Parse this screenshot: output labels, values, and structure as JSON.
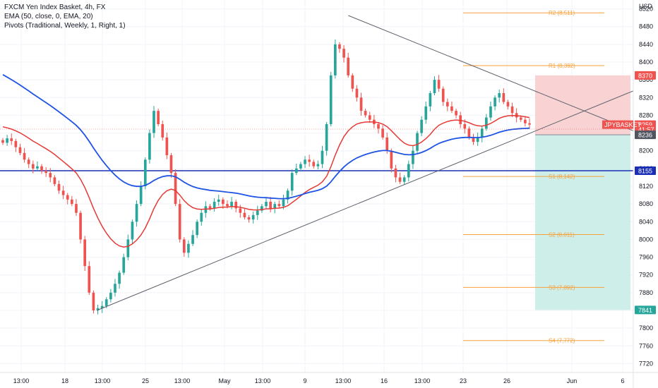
{
  "legend": {
    "title": "FXCM Yen Index Basket, 4h, FX",
    "ema": "EMA (50, close, 0, EMA, 20)",
    "pivots": "Pivots (Traditional, Weekly, 1, Right, 1)"
  },
  "colors": {
    "up": "#26a69a",
    "down": "#ef5350",
    "ema50": "#e53935",
    "ema_blue": "#1e53e5",
    "hline": "#1a2fb5",
    "pivot": "#f7a13b",
    "risk": "#f8c8c8",
    "reward": "#c6ebe6"
  },
  "chart_data": {
    "type": "candlestick",
    "currency": "USD",
    "ylim": [
      7700,
      8540
    ],
    "yticks": [
      8520,
      8480,
      8440,
      8400,
      8360,
      8320,
      8280,
      8240,
      8200,
      8160,
      8120,
      8080,
      8040,
      8000,
      7960,
      7920,
      7880,
      7840,
      7800,
      7760,
      7720
    ],
    "xticks": [
      "13:00",
      "18",
      "13:00",
      "25",
      "13:00",
      "May",
      "13:00",
      "9",
      "13:00",
      "16",
      "13:00",
      "23",
      "26",
      "Jun",
      "6"
    ],
    "pivots": [
      {
        "label": "R2 (8,511)",
        "value": 8511
      },
      {
        "label": "R1 (8,392)",
        "value": 8392
      },
      {
        "label": "S1 (8,142)",
        "value": 8142
      },
      {
        "label": "S2 (8,011)",
        "value": 8011
      },
      {
        "label": "S3 (7,892)",
        "value": 7892
      },
      {
        "label": "S4 (7,772)",
        "value": 7772
      }
    ],
    "price_tags": [
      {
        "label": "8370",
        "value": 8370,
        "color": "#ef5350"
      },
      {
        "label": "8259",
        "value": 8259,
        "color": "#ef5350"
      },
      {
        "label": "41:57",
        "value": 8248,
        "color": "#ef5350"
      },
      {
        "label": "8236",
        "value": 8236,
        "color": "#505461"
      },
      {
        "label": "8155",
        "value": 8155,
        "color": "#1a2fb5"
      },
      {
        "label": "7841",
        "value": 7841,
        "color": "#26a69a"
      }
    ],
    "symbol_tag": "JPYBASKET",
    "horizontal_line": 8155,
    "position": {
      "entry": 8236,
      "stop": 8370,
      "target": 7841
    },
    "trendlines": [
      {
        "from": [
          0.153,
          7840
        ],
        "to": [
          1.0,
          8335
        ]
      },
      {
        "from": [
          0.55,
          8505
        ],
        "to": [
          1.0,
          8245
        ]
      }
    ],
    "closes": [
      8218,
      8228,
      8222,
      8208,
      8195,
      8180,
      8170,
      8160,
      8165,
      8155,
      8150,
      8140,
      8125,
      8110,
      8100,
      8090,
      8080,
      8060,
      8000,
      7940,
      7880,
      7840,
      7845,
      7850,
      7865,
      7880,
      7900,
      7925,
      7960,
      8000,
      8040,
      8080,
      8120,
      8180,
      8240,
      8290,
      8260,
      8230,
      8190,
      8150,
      8080,
      8000,
      7970,
      7990,
      8010,
      8040,
      8060,
      8075,
      8070,
      8085,
      8090,
      8080,
      8075,
      8085,
      8070,
      8060,
      8050,
      8045,
      8055,
      8065,
      8075,
      8085,
      8070,
      8080,
      8075,
      8090,
      8110,
      8150,
      8160,
      8170,
      8180,
      8175,
      8165,
      8170,
      8200,
      8260,
      8370,
      8440,
      8430,
      8410,
      8370,
      8340,
      8320,
      8290,
      8280,
      8270,
      8260,
      8250,
      8230,
      8200,
      8160,
      8140,
      8130,
      8140,
      8170,
      8200,
      8240,
      8270,
      8300,
      8330,
      8360,
      8340,
      8310,
      8300,
      8290,
      8280,
      8260,
      8250,
      8230,
      8220,
      8230,
      8250,
      8275,
      8300,
      8320,
      8330,
      8310,
      8300,
      8285,
      8275,
      8270,
      8262,
      8259
    ]
  }
}
